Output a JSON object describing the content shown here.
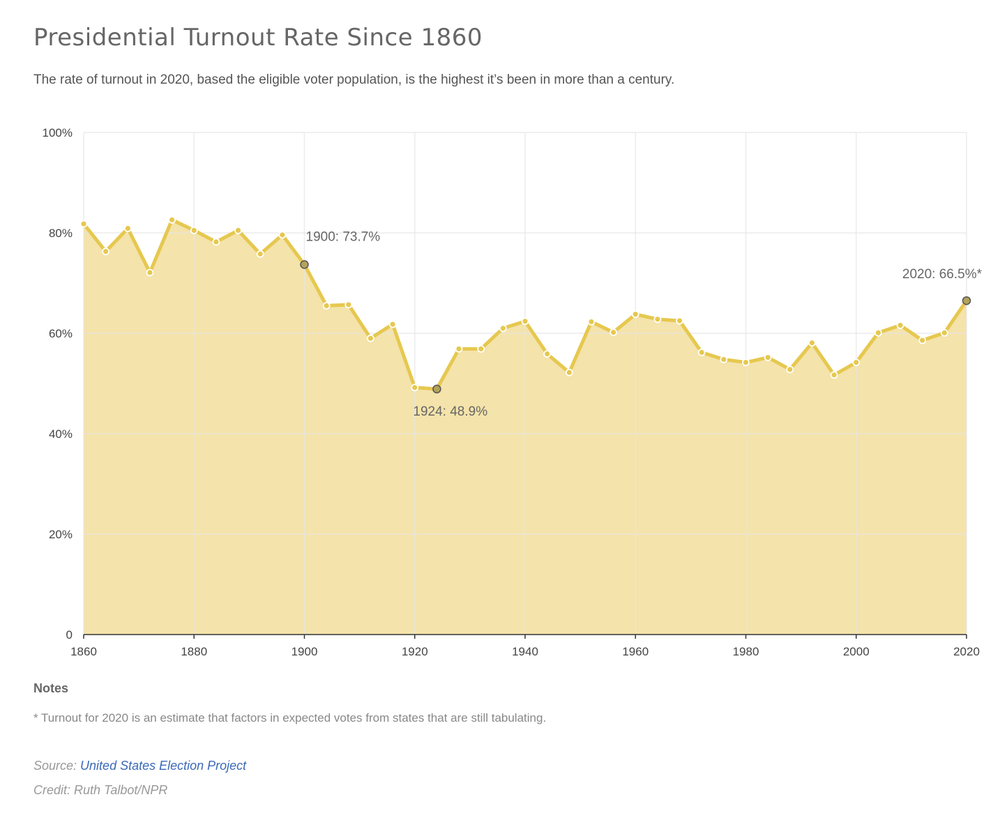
{
  "title": "Presidential Turnout Rate Since 1860",
  "subtitle": "The rate of turnout in 2020, based the eligible voter population, is the highest it’s been in more than a century.",
  "notes": {
    "heading": "Notes",
    "text": "* Turnout for 2020 is an estimate that factors in expected votes from states that are still tabulating."
  },
  "source": {
    "prefix": "Source: ",
    "link_text": "United States Election Project"
  },
  "credit": "Credit: Ruth Talbot/NPR",
  "colors": {
    "line": "#e6c84f",
    "area": "#f4e3aa",
    "highlight_point": "#b3a25a",
    "grid": "#e6e6e6"
  },
  "chart_data": {
    "type": "area",
    "x": [
      1860,
      1864,
      1868,
      1872,
      1876,
      1880,
      1884,
      1888,
      1892,
      1896,
      1900,
      1904,
      1908,
      1912,
      1916,
      1920,
      1924,
      1928,
      1932,
      1936,
      1940,
      1944,
      1948,
      1952,
      1956,
      1960,
      1964,
      1968,
      1972,
      1976,
      1980,
      1984,
      1988,
      1992,
      1996,
      2000,
      2004,
      2008,
      2012,
      2016,
      2020
    ],
    "series": [
      {
        "values": [
          81.8,
          76.3,
          80.9,
          72.1,
          82.6,
          80.5,
          78.2,
          80.5,
          75.8,
          79.6,
          73.7,
          65.5,
          65.7,
          59.0,
          61.8,
          49.2,
          48.9,
          56.9,
          56.9,
          61.0,
          62.4,
          55.9,
          52.2,
          62.3,
          60.2,
          63.8,
          62.8,
          62.5,
          56.2,
          54.8,
          54.2,
          55.2,
          52.8,
          58.1,
          51.7,
          54.2,
          60.1,
          61.6,
          58.6,
          60.1,
          66.5
        ]
      }
    ],
    "highlighted": [
      {
        "x": 1900,
        "y": 73.7,
        "label": "1900: 73.7%"
      },
      {
        "x": 1924,
        "y": 48.9,
        "label": "1924: 48.9%"
      },
      {
        "x": 2020,
        "y": 66.5,
        "label": "2020: 66.5%*"
      }
    ],
    "x_ticks": [
      1860,
      1880,
      1900,
      1920,
      1940,
      1960,
      1980,
      2000,
      2020
    ],
    "y_ticks": [
      {
        "value": 0,
        "label": "0"
      },
      {
        "value": 20,
        "label": "20%"
      },
      {
        "value": 40,
        "label": "40%"
      },
      {
        "value": 60,
        "label": "60%"
      },
      {
        "value": 80,
        "label": "80%"
      },
      {
        "value": 100,
        "label": "100%"
      }
    ],
    "xlim": [
      1860,
      2020
    ],
    "ylim": [
      0,
      100
    ],
    "grid": true,
    "xlabel": "",
    "ylabel": ""
  }
}
